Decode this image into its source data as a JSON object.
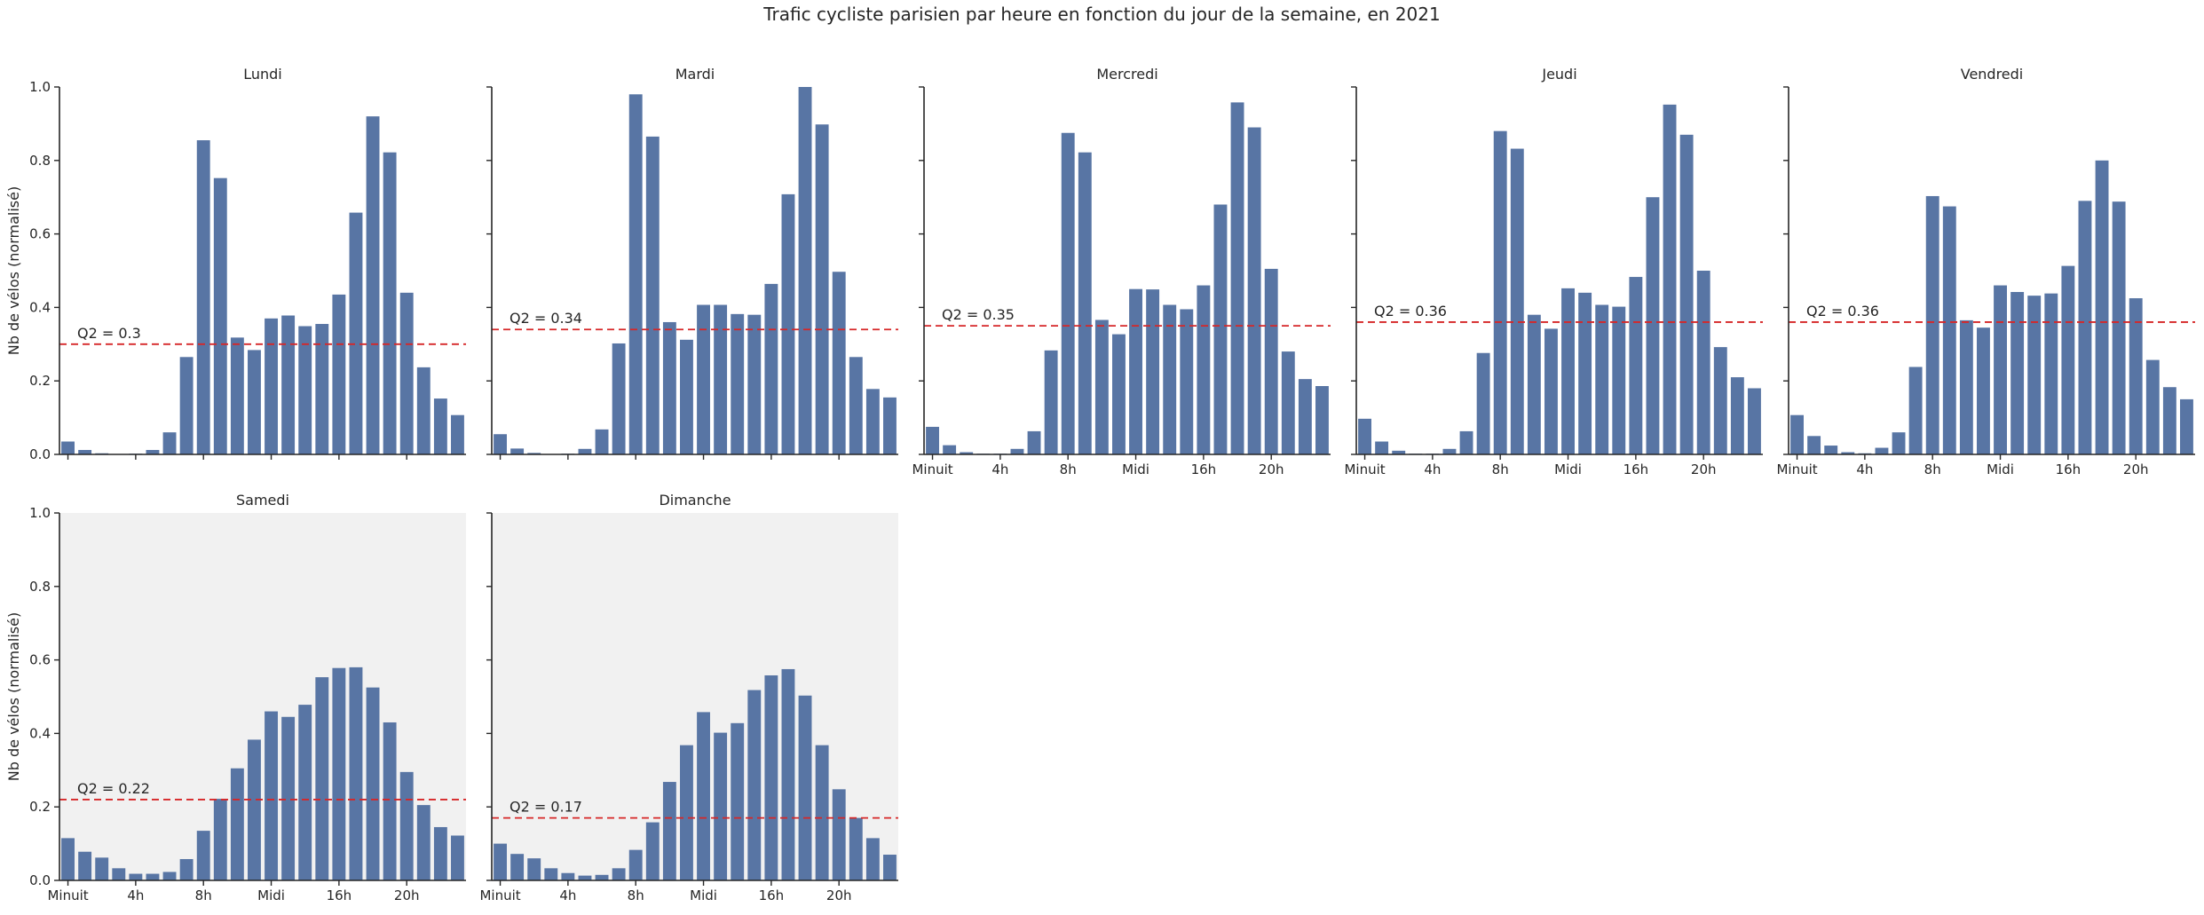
{
  "figure": {
    "title": "Trafic cycliste parisien par heure en fonction du jour de la semaine, en 2021",
    "ylabel": "Nb de vélos (normalisé)",
    "colors": {
      "bar": "#5875a4",
      "median_line": "#d62728",
      "weekend_bg": "#f1f1f1",
      "axis": "#262626"
    }
  },
  "chart_data": [
    {
      "type": "bar",
      "title": "Lundi",
      "weekend": false,
      "ylim": [
        0,
        1
      ],
      "yticks": [
        "0.0",
        "0.2",
        "0.4",
        "0.6",
        "0.8",
        "1.0"
      ],
      "xticks": [],
      "median_label": "Q2 = 0.3",
      "median": 0.3,
      "values": [
        0.035,
        0.012,
        0.003,
        0.001,
        0.002,
        0.012,
        0.06,
        0.265,
        0.855,
        0.752,
        0.318,
        0.284,
        0.37,
        0.378,
        0.349,
        0.355,
        0.435,
        0.658,
        0.92,
        0.822,
        0.44,
        0.237,
        0.152,
        0.107
      ]
    },
    {
      "type": "bar",
      "title": "Mardi",
      "weekend": false,
      "ylim": [
        0,
        1
      ],
      "yticks": [],
      "xticks": [],
      "median_label": "Q2 = 0.34",
      "median": 0.34,
      "values": [
        0.055,
        0.016,
        0.004,
        0.001,
        0.002,
        0.015,
        0.068,
        0.302,
        0.98,
        0.865,
        0.36,
        0.312,
        0.407,
        0.407,
        0.382,
        0.38,
        0.464,
        0.708,
        1.0,
        0.898,
        0.497,
        0.265,
        0.178,
        0.155
      ]
    },
    {
      "type": "bar",
      "title": "Mercredi",
      "weekend": false,
      "ylim": [
        0,
        1
      ],
      "yticks": [],
      "xticks": [
        "Minuit",
        "4h",
        "8h",
        "Midi",
        "16h",
        "20h"
      ],
      "median_label": "Q2 = 0.35",
      "median": 0.35,
      "values": [
        0.075,
        0.025,
        0.006,
        0.002,
        0.002,
        0.015,
        0.063,
        0.283,
        0.875,
        0.822,
        0.366,
        0.327,
        0.45,
        0.449,
        0.407,
        0.395,
        0.46,
        0.68,
        0.958,
        0.89,
        0.505,
        0.28,
        0.205,
        0.186
      ]
    },
    {
      "type": "bar",
      "title": "Jeudi",
      "weekend": false,
      "ylim": [
        0,
        1
      ],
      "yticks": [],
      "xticks": [
        "Minuit",
        "4h",
        "8h",
        "Midi",
        "16h",
        "20h"
      ],
      "median_label": "Q2 = 0.36",
      "median": 0.36,
      "values": [
        0.097,
        0.035,
        0.01,
        0.002,
        0.002,
        0.015,
        0.063,
        0.276,
        0.88,
        0.832,
        0.38,
        0.342,
        0.452,
        0.44,
        0.407,
        0.402,
        0.483,
        0.7,
        0.952,
        0.87,
        0.5,
        0.292,
        0.21,
        0.18
      ]
    },
    {
      "type": "bar",
      "title": "Vendredi",
      "weekend": false,
      "ylim": [
        0,
        1
      ],
      "yticks": [],
      "xticks": [
        "Minuit",
        "4h",
        "8h",
        "Midi",
        "16h",
        "20h"
      ],
      "median_label": "Q2 = 0.36",
      "median": 0.36,
      "values": [
        0.107,
        0.05,
        0.024,
        0.006,
        0.003,
        0.018,
        0.06,
        0.238,
        0.703,
        0.675,
        0.365,
        0.345,
        0.46,
        0.442,
        0.432,
        0.438,
        0.513,
        0.69,
        0.8,
        0.688,
        0.425,
        0.257,
        0.183,
        0.15
      ]
    },
    {
      "type": "bar",
      "title": "Samedi",
      "weekend": true,
      "ylim": [
        0,
        1
      ],
      "yticks": [
        "0.0",
        "0.2",
        "0.4",
        "0.6",
        "0.8",
        "1.0"
      ],
      "xticks": [
        "Minuit",
        "4h",
        "8h",
        "Midi",
        "16h",
        "20h"
      ],
      "median_label": "Q2 = 0.22",
      "median": 0.22,
      "values": [
        0.115,
        0.078,
        0.062,
        0.033,
        0.018,
        0.018,
        0.023,
        0.058,
        0.135,
        0.222,
        0.305,
        0.383,
        0.46,
        0.445,
        0.478,
        0.553,
        0.578,
        0.58,
        0.525,
        0.43,
        0.295,
        0.205,
        0.145,
        0.122
      ]
    },
    {
      "type": "bar",
      "title": "Dimanche",
      "weekend": true,
      "ylim": [
        0,
        1
      ],
      "yticks": [],
      "xticks": [
        "Minuit",
        "4h",
        "8h",
        "Midi",
        "16h",
        "20h"
      ],
      "median_label": "Q2 = 0.17",
      "median": 0.17,
      "values": [
        0.1,
        0.072,
        0.06,
        0.033,
        0.02,
        0.013,
        0.015,
        0.033,
        0.083,
        0.158,
        0.268,
        0.368,
        0.458,
        0.402,
        0.428,
        0.518,
        0.558,
        0.575,
        0.503,
        0.368,
        0.248,
        0.17,
        0.115,
        0.07
      ]
    }
  ]
}
